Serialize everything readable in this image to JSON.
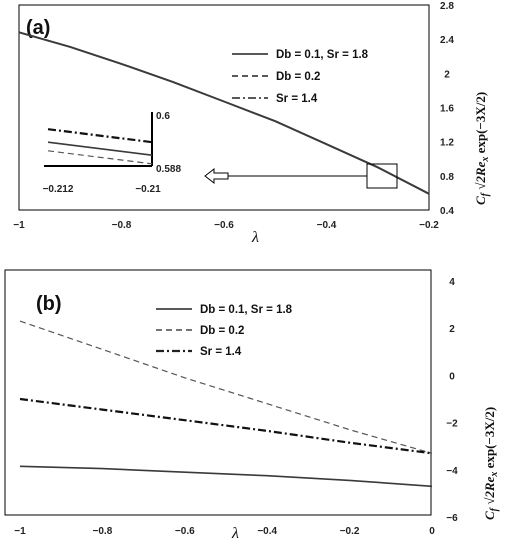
{
  "chart_data": [
    {
      "panel": "(a)",
      "type": "line",
      "xlabel": "λ",
      "ylabel": "C_f √(2Re_x) exp(−3X/2)",
      "xlim": [
        -1,
        -0.2
      ],
      "ylim": [
        0.4,
        2.8
      ],
      "xticks": [
        "−1",
        "−0.8",
        "−0.6",
        "−0.4",
        "−0.2"
      ],
      "yticks": [
        "0.4",
        "0.8",
        "1.2",
        "1.6",
        "2",
        "2.4",
        "2.8"
      ],
      "legend": {
        "placement": "top-right",
        "entries": [
          "Db = 0.1, Sr = 1.8",
          "Db = 0.2",
          "Sr = 1.4"
        ]
      },
      "series": [
        {
          "name": "Db = 0.1, Sr = 1.8",
          "style": "solid",
          "x": [
            -1,
            -0.9,
            -0.8,
            -0.7,
            -0.6,
            -0.5,
            -0.4,
            -0.3,
            -0.2
          ],
          "y": [
            2.48,
            2.31,
            2.11,
            1.9,
            1.67,
            1.44,
            1.17,
            0.9,
            0.59
          ]
        }
      ],
      "inset": {
        "xticks": [
          "−0.212",
          "−0.21"
        ],
        "yticks": [
          "0.6",
          "0.588"
        ],
        "xlim": [
          -0.212,
          -0.21
        ],
        "ylim": [
          0.588,
          0.6
        ],
        "series": [
          {
            "name": "Db = 0.1, Sr = 1.8",
            "style": "solid",
            "x": [
              -0.212,
              -0.21
            ],
            "y": [
              0.5935,
              0.5905
            ]
          },
          {
            "name": "Db = 0.2",
            "style": "dashed",
            "x": [
              -0.212,
              -0.21
            ],
            "y": [
              0.5915,
              0.5885
            ]
          },
          {
            "name": "Sr = 1.4",
            "style": "dashdot",
            "x": [
              -0.212,
              -0.21
            ],
            "y": [
              0.5965,
              0.5935
            ]
          }
        ]
      }
    },
    {
      "panel": "(b)",
      "type": "line",
      "xlabel": "λ",
      "ylabel": "C_f √(2Re_x) exp(−3X/2)",
      "xlim": [
        -1,
        0
      ],
      "ylim": [
        -6,
        4
      ],
      "xticks": [
        "−1",
        "−0.8",
        "−0.6",
        "−0.4",
        "−0.2",
        "0"
      ],
      "yticks": [
        "4",
        "2",
        "0",
        "−2",
        "−4",
        "−6"
      ],
      "legend": {
        "placement": "top-center",
        "entries": [
          "Db = 0.1, Sr = 1.8",
          "Db = 0.2",
          "Sr = 1.4"
        ]
      },
      "series": [
        {
          "name": "Db = 0.1, Sr = 1.8",
          "style": "solid",
          "x": [
            -1,
            -0.8,
            -0.6,
            -0.4,
            -0.2,
            0
          ],
          "y": [
            -3.85,
            -3.95,
            -4.1,
            -4.25,
            -4.45,
            -4.7
          ]
        },
        {
          "name": "Db = 0.2",
          "style": "dashed",
          "x": [
            -1,
            -0.8,
            -0.6,
            -0.4,
            -0.2,
            0
          ],
          "y": [
            2.3,
            1.1,
            -0.1,
            -1.2,
            -2.3,
            -3.3
          ]
        },
        {
          "name": "Sr = 1.4",
          "style": "dashdot",
          "x": [
            -1,
            -0.8,
            -0.6,
            -0.4,
            -0.2,
            0
          ],
          "y": [
            -1.0,
            -1.45,
            -1.9,
            -2.35,
            -2.85,
            -3.3
          ]
        }
      ]
    }
  ]
}
